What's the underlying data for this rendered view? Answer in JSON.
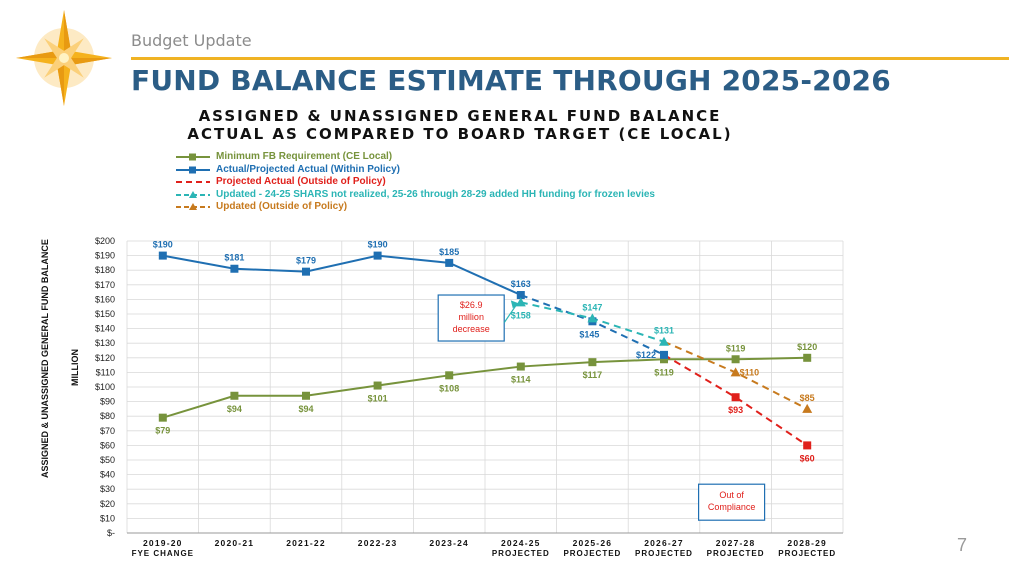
{
  "header": {
    "subtitle": "Budget Update",
    "title": "FUND BALANCE ESTIMATE THROUGH 2025-2026",
    "page_number": "7",
    "logo_icon": "compass-star-icon"
  },
  "chart_data": {
    "type": "line",
    "title_line1": "ASSIGNED & UNASSIGNED GENERAL FUND BALANCE",
    "title_line2": "ACTUAL AS COMPARED TO BOARD TARGET (CE LOCAL)",
    "ylabel": "ASSIGNED & UNASSIGNED GENERAL FUND BALANCE",
    "yunit": "MILLION",
    "ylim": [
      0,
      200
    ],
    "ytick_step": 10,
    "ytick_labels": [
      "$-",
      "$10",
      "$20",
      "$30",
      "$40",
      "$50",
      "$60",
      "$70",
      "$80",
      "$90",
      "$100",
      "$110",
      "$120",
      "$130",
      "$140",
      "$150",
      "$160",
      "$170",
      "$180",
      "$190",
      "$200"
    ],
    "categories": [
      [
        "2019-20",
        "FYE CHANGE"
      ],
      [
        "2020-21",
        ""
      ],
      [
        "2021-22",
        ""
      ],
      [
        "2022-23",
        ""
      ],
      [
        "2023-24",
        ""
      ],
      [
        "2024-25",
        "PROJECTED"
      ],
      [
        "2025-26",
        "PROJECTED"
      ],
      [
        "2026-27",
        "PROJECTED"
      ],
      [
        "2027-28",
        "PROJECTED"
      ],
      [
        "2028-29",
        "PROJECTED"
      ]
    ],
    "series": [
      {
        "name": "Minimum FB Requirement (CE Local)",
        "color": "#77933c",
        "dash": false,
        "marker": "square",
        "values": [
          79,
          94,
          94,
          101,
          108,
          114,
          117,
          119,
          119,
          120
        ],
        "labels": [
          "$79",
          "$94",
          "$94",
          "$101",
          "$108",
          "$114",
          "$117",
          "$119",
          "$119",
          "$120"
        ],
        "label_pos": [
          "below",
          "below",
          "below",
          "below",
          "below",
          "below",
          "below",
          "below",
          "above",
          "above"
        ]
      },
      {
        "name": "Actual/Projected Actual (Within Policy)",
        "color": "#1f6fb2",
        "dash": false,
        "marker": "square",
        "values": [
          190,
          181,
          179,
          190,
          185,
          163,
          null,
          null,
          null,
          null
        ],
        "labels": [
          "$190",
          "$181",
          "$179",
          "$190",
          "$185",
          "$163",
          null,
          null,
          null,
          null
        ],
        "label_pos": [
          "above",
          "above",
          "above",
          "above",
          "above",
          "above",
          null,
          null,
          null,
          null
        ]
      },
      {
        "name": "Projected Actual (Outside of Policy)",
        "color": "#e0201b",
        "dash": true,
        "marker": "square",
        "values": [
          null,
          null,
          null,
          null,
          null,
          null,
          null,
          122,
          93,
          60
        ],
        "labels": [
          null,
          null,
          null,
          null,
          null,
          null,
          null,
          null,
          "$93",
          "$60"
        ],
        "label_pos": [
          null,
          null,
          null,
          null,
          null,
          null,
          null,
          null,
          "below",
          "below"
        ]
      },
      {
        "name": "Updated -  24-25 SHARS not realized,  25-26 through 28-29 added HH funding for frozen levies",
        "color": "#2bb5b5",
        "dash": true,
        "marker": "triangle",
        "values": [
          null,
          null,
          null,
          null,
          null,
          158,
          147,
          131,
          null,
          null
        ],
        "labels": [
          null,
          null,
          null,
          null,
          null,
          "$158",
          "$147",
          "$131",
          null,
          null
        ],
        "label_pos": [
          null,
          null,
          null,
          null,
          null,
          "below",
          "above",
          "above",
          null,
          null
        ]
      },
      {
        "name": "Updated (Outside of Policy)",
        "color": "#c77a1e",
        "dash": true,
        "marker": "triangle",
        "values": [
          null,
          null,
          null,
          null,
          null,
          null,
          null,
          131,
          110,
          85
        ],
        "labels": [
          null,
          null,
          null,
          null,
          null,
          null,
          null,
          null,
          "$110",
          "$85"
        ],
        "label_pos": [
          null,
          null,
          null,
          null,
          null,
          null,
          null,
          null,
          "right",
          "above"
        ]
      }
    ],
    "projected_dashed_blue": {
      "color": "#1f6fb2",
      "values": [
        null,
        null,
        null,
        null,
        null,
        163,
        145,
        122,
        null,
        null
      ],
      "labels": [
        null,
        null,
        null,
        null,
        null,
        null,
        "$145",
        "$122",
        null,
        null
      ]
    },
    "annotations": [
      {
        "text": [
          "$26.9",
          "million",
          "decrease"
        ],
        "color": "#e0201b",
        "border": "#1f6fb2"
      },
      {
        "text": [
          "Out of",
          "Compliance"
        ],
        "color": "#e0201b",
        "border": "#1f6fb2"
      }
    ]
  }
}
